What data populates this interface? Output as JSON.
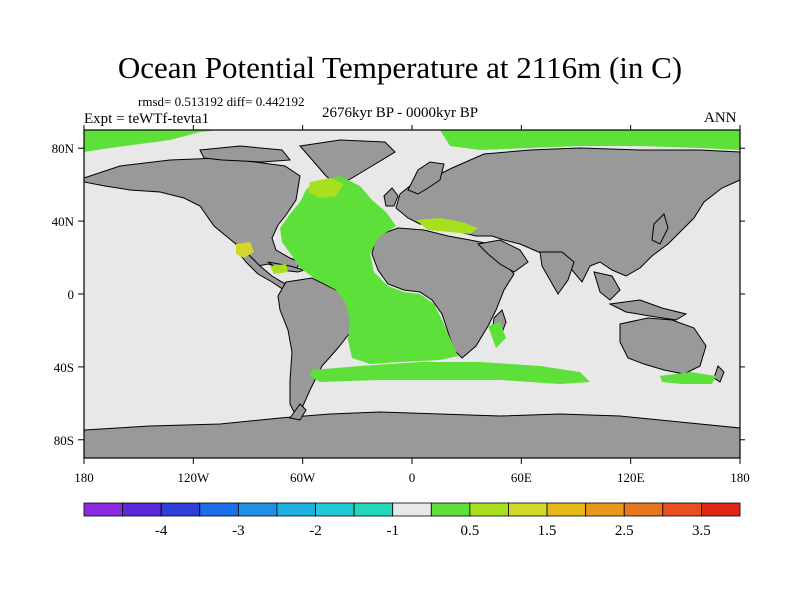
{
  "figure": {
    "title": "Ocean Potential Temperature at 2116m (in C)",
    "stats": "rmsd= 0.513192 diff= 0.442192",
    "experiment": "Expt = teWTf-tevta1",
    "period": "2676kyr BP - 0000kyr BP",
    "season": "ANN"
  },
  "axes": {
    "lon_labels": [
      "180",
      "120W",
      "60W",
      "0",
      "60E",
      "120E",
      "180"
    ],
    "lat_labels": [
      "80N",
      "40N",
      "0",
      "40S",
      "80S"
    ]
  },
  "colorbar": {
    "colors": [
      "#8a2be2",
      "#5a2bd9",
      "#2f3fdc",
      "#1a6ee8",
      "#1e90e6",
      "#1fb0e0",
      "#22c8d8",
      "#22d8b8",
      "#e8e8e8",
      "#5ee03a",
      "#a8e020",
      "#d2d828",
      "#e6b818",
      "#e8981a",
      "#e8761c",
      "#e85020",
      "#e02818"
    ],
    "labels": [
      "-4",
      "-3",
      "-2",
      "-1",
      "0.5",
      "1.5",
      "2.5",
      "3.5"
    ]
  },
  "map_colors": {
    "land": "#999999",
    "ocean_neutral": "#e8e8e8",
    "positive_anomaly": "#5ee03a",
    "strong_anomaly": "#a8e020"
  }
}
